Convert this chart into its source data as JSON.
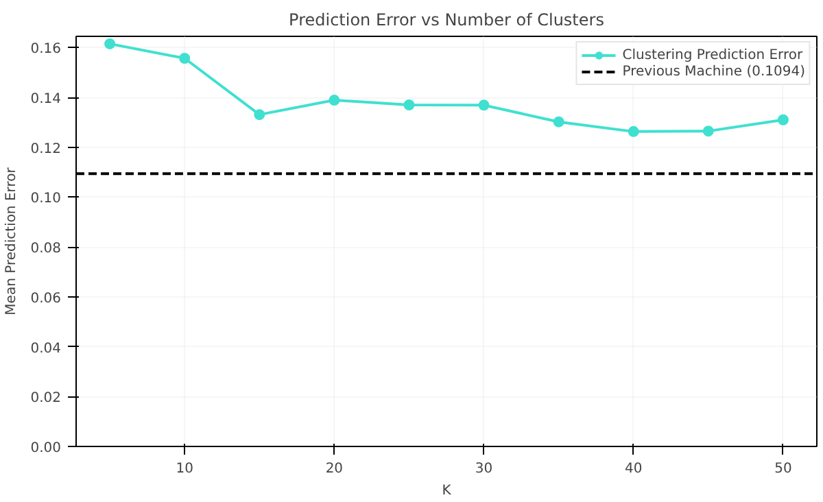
{
  "chart_data": {
    "type": "line",
    "title": "Prediction Error vs Number of Clusters",
    "xlabel": "K",
    "ylabel": "Mean Prediction Error",
    "x": [
      5,
      10,
      15,
      20,
      25,
      30,
      35,
      40,
      45,
      50
    ],
    "series": [
      {
        "name": "Clustering Prediction Error",
        "color": "#40e0d0",
        "values": [
          0.1615,
          0.1557,
          0.1331,
          0.1389,
          0.137,
          0.1369,
          0.1302,
          0.1263,
          0.1265,
          0.131
        ]
      }
    ],
    "ref_lines": [
      {
        "axis": "y",
        "value": 0.1094,
        "label": "Previous Machine (0.1094)",
        "color": "#000000",
        "line_style": "dashed"
      }
    ],
    "xlim": [
      2.75,
      52.25
    ],
    "ylim": [
      0,
      0.1645
    ],
    "xticks": [
      10,
      20,
      30,
      40,
      50
    ],
    "yticks": [
      {
        "value": 0,
        "label": "0.00"
      },
      {
        "value": 0.02,
        "label": "0.02"
      },
      {
        "value": 0.04,
        "label": "0.04"
      },
      {
        "value": 0.06,
        "label": "0.06"
      },
      {
        "value": 0.08,
        "label": "0.08"
      },
      {
        "value": 0.1,
        "label": "0.10"
      },
      {
        "value": 0.12,
        "label": "0.12"
      },
      {
        "value": 0.14,
        "label": "0.14"
      },
      {
        "value": 0.16,
        "label": "0.16"
      }
    ],
    "grid": true,
    "legend": "top right",
    "marker": "circle",
    "line_style": "solid"
  }
}
